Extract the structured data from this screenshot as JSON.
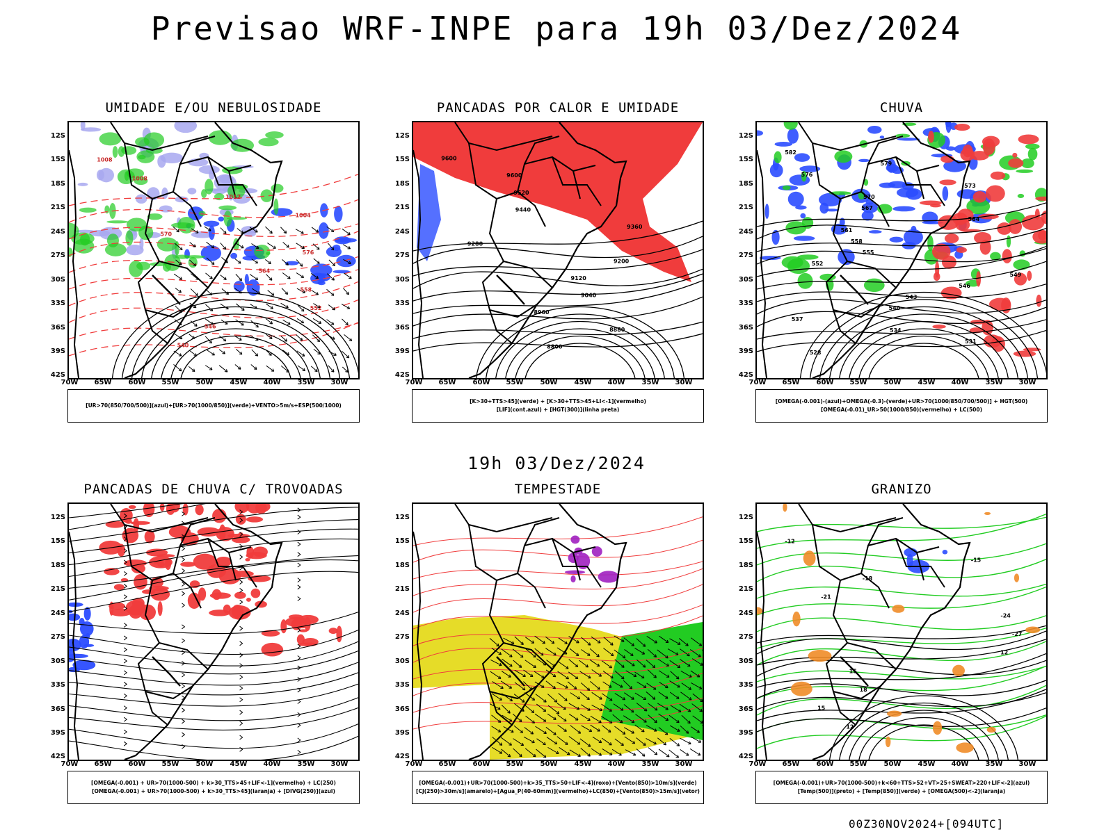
{
  "title": "Previsao WRF-INPE  para 19h 03/Dez/2024",
  "mid_date": "19h 03/Dez/2024",
  "run_label": "00Z30NOV2024+[094UTC]",
  "axes": {
    "lat_labels": [
      "12S",
      "15S",
      "18S",
      "21S",
      "24S",
      "27S",
      "30S",
      "33S",
      "36S",
      "39S",
      "42S"
    ],
    "lon_labels": [
      "70W",
      "65W",
      "60W",
      "55W",
      "50W",
      "45W",
      "40W",
      "35W",
      "30W"
    ]
  },
  "colors": {
    "red": "#f03c3c",
    "green": "#22cc22",
    "blue": "#2b4cff",
    "light_blue": "#a8a8f0",
    "yellow": "#e6dc28",
    "orange": "#f08c28",
    "purple": "#a020c0",
    "dark_teal": "#3c6e6e"
  },
  "panels": [
    {
      "title": "UMIDADE E/OU NEBULOSIDADE",
      "legend": [
        "[UR>70(850/700/500)](azul)+[UR>70(1000/850)](verde)+VENTO>5m/s+ESP(500/1000)"
      ],
      "contour_labels": [
        "1008",
        "1008",
        "1012",
        "1004",
        "570",
        "576",
        "564",
        "558",
        "552",
        "546",
        "540"
      ]
    },
    {
      "title": "PANCADAS POR CALOR E UMIDADE",
      "legend": [
        "[K>30+TTS>45](verde) + [K>30+TTS>45+LI<-1](vermelho)",
        "[LIF](cont.azul) + [HGT(300)](linha preta)"
      ],
      "contour_labels": [
        "9600",
        "9600",
        "9520",
        "9440",
        "9360",
        "9280",
        "9200",
        "9120",
        "9040",
        "8960",
        "8880",
        "8800"
      ]
    },
    {
      "title": "CHUVA",
      "legend": [
        "[OMEGA(-0.001)-(azul)+OMEGA(-0.3)-(verde)+UR>70(1000/850/700/500)] + HGT(500)",
        "[OMEGA(-0.01)_UR>50(1000/850)(vermelho) + LC(500)"
      ],
      "contour_labels": [
        "582",
        "579",
        "576",
        "573",
        "570",
        "567",
        "564",
        "561",
        "558",
        "555",
        "552",
        "549",
        "546",
        "543",
        "540",
        "537",
        "534",
        "531",
        "528"
      ]
    },
    {
      "title": "PANCADAS DE CHUVA C/ TROVOADAS",
      "legend": [
        "[OMEGA(-0.001) + UR>70(1000-500) + k>30_TTS>45+LIF<-1](vermelho) + LC(250)",
        "[OMEGA(-0.001) + UR>70(1000-500) + k>30_TTS>45](laranja) + [DIVG(250)](azul)"
      ],
      "contour_labels": []
    },
    {
      "title": "TEMPESTADE",
      "legend": [
        "[OMEGA(-0.001)+UR>70(1000-500)+k>35_TTS>50+LIF<-4](roxo)+[Vento(850)>10m/s](verde)",
        "[CJ(250)>30m/s](amarelo)+[Agua_P(40-60mm)](vermelho)+LC(850)+[Vento(850)>15m/s](vetor)"
      ],
      "contour_labels": []
    },
    {
      "title": "GRANIZO",
      "legend": [
        "[OMEGA(-0.001)+UR>70(1000-500)+k<60+TTS>52+VT>25+SWEAT>220+LIF<-2](azul)",
        "[Temp(500)](preto) + [Temp(850)](verde) + [OMEGA(500)<-2](laranja)"
      ],
      "contour_labels": [
        "-12",
        "-15",
        "-18",
        "-21",
        "-24",
        "-27",
        "12",
        "15",
        "18",
        "15",
        "12"
      ]
    }
  ]
}
